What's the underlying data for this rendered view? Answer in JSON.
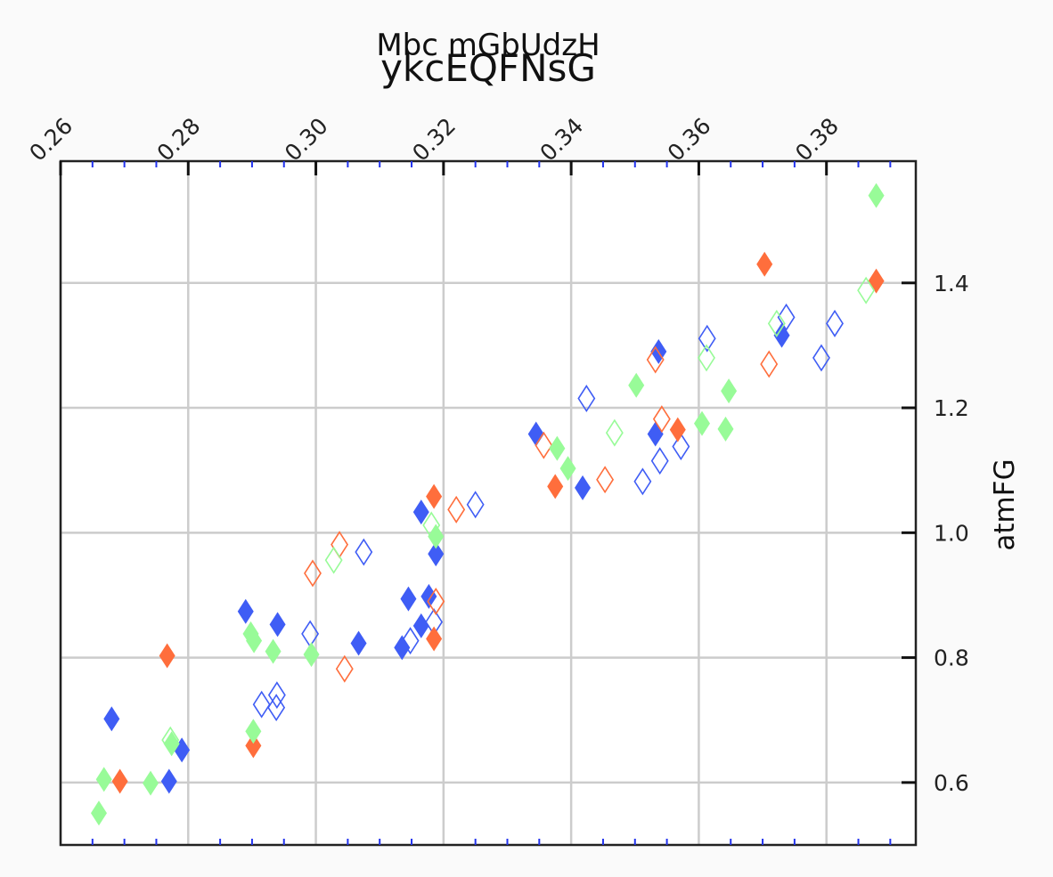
{
  "chart_data": {
    "type": "scatter",
    "title": "ykcEQFNsG",
    "subtitle": "Mbc mGbUdzH",
    "xlabel": "",
    "ylabel": "atmFG",
    "x_axis_position": "top",
    "y_axis_position": "right",
    "xlim": [
      0.26,
      0.394
    ],
    "ylim": [
      0.5,
      1.595
    ],
    "x_ticks": [
      0.26,
      0.28,
      0.3,
      0.32,
      0.34,
      0.36,
      0.38
    ],
    "x_tick_labels": [
      "0.26",
      "0.28",
      "0.30",
      "0.32",
      "0.34",
      "0.36",
      "0.38"
    ],
    "y_ticks": [
      0.6,
      0.8,
      1.0,
      1.2,
      1.4
    ],
    "y_tick_labels": [
      "0.6",
      "0.8",
      "1.0",
      "1.2",
      "1.4"
    ],
    "grid": true,
    "marker": "diamond",
    "colors": {
      "blue": "#3f5df5",
      "orange": "#ff6e3c",
      "green": "#98fb98",
      "background": "#fafafa",
      "grid": "#cccccc",
      "axis": "#222222"
    },
    "series": [
      {
        "color": "#3f5df5",
        "filled": [
          [
            0.268,
            0.702
          ],
          [
            0.277,
            0.602
          ],
          [
            0.279,
            0.652
          ],
          [
            0.289,
            0.874
          ],
          [
            0.294,
            0.853
          ],
          [
            0.3067,
            0.823
          ],
          [
            0.3135,
            0.816
          ],
          [
            0.3145,
            0.894
          ],
          [
            0.3165,
            0.851
          ],
          [
            0.3165,
            1.033
          ],
          [
            0.3177,
            0.898
          ],
          [
            0.3188,
            0.966
          ],
          [
            0.3345,
            1.158
          ],
          [
            0.3418,
            1.072
          ],
          [
            0.3532,
            1.158
          ],
          [
            0.3537,
            1.29
          ],
          [
            0.373,
            1.316
          ]
        ],
        "hollow": [
          [
            0.2915,
            0.725
          ],
          [
            0.2938,
            0.72
          ],
          [
            0.2939,
            0.74
          ],
          [
            0.2991,
            0.838
          ],
          [
            0.3075,
            0.969
          ],
          [
            0.3148,
            0.827
          ],
          [
            0.3185,
            0.857
          ],
          [
            0.325,
            1.045
          ],
          [
            0.3424,
            1.215
          ],
          [
            0.3512,
            1.082
          ],
          [
            0.3539,
            1.115
          ],
          [
            0.3572,
            1.138
          ],
          [
            0.3613,
            1.311
          ],
          [
            0.3737,
            1.345
          ],
          [
            0.3792,
            1.28
          ],
          [
            0.3813,
            1.335
          ]
        ]
      },
      {
        "color": "#ff6e3c",
        "filled": [
          [
            0.2693,
            0.602
          ],
          [
            0.2767,
            0.803
          ],
          [
            0.2902,
            0.659
          ],
          [
            0.3185,
            0.83
          ],
          [
            0.3185,
            1.058
          ],
          [
            0.3375,
            1.074
          ],
          [
            0.3567,
            1.165
          ],
          [
            0.3703,
            1.43
          ],
          [
            0.3878,
            1.403
          ]
        ],
        "hollow": [
          [
            0.2995,
            0.935
          ],
          [
            0.3037,
            0.981
          ],
          [
            0.3045,
            0.782
          ],
          [
            0.3188,
            0.89
          ],
          [
            0.322,
            1.037
          ],
          [
            0.3357,
            1.14
          ],
          [
            0.3453,
            1.085
          ],
          [
            0.3532,
            1.277
          ],
          [
            0.3542,
            1.182
          ],
          [
            0.371,
            1.27
          ]
        ]
      },
      {
        "color": "#98fb98",
        "filled": [
          [
            0.266,
            0.551
          ],
          [
            0.2668,
            0.605
          ],
          [
            0.2741,
            0.599
          ],
          [
            0.2774,
            0.662
          ],
          [
            0.2898,
            0.838
          ],
          [
            0.2903,
            0.827
          ],
          [
            0.2902,
            0.682
          ],
          [
            0.2933,
            0.81
          ],
          [
            0.2993,
            0.805
          ],
          [
            0.3188,
            0.994
          ],
          [
            0.3378,
            1.135
          ],
          [
            0.3395,
            1.103
          ],
          [
            0.3502,
            1.236
          ],
          [
            0.3605,
            1.175
          ],
          [
            0.3642,
            1.166
          ],
          [
            0.3647,
            1.227
          ],
          [
            0.3878,
            1.54
          ]
        ],
        "hollow": [
          [
            0.2772,
            0.668
          ],
          [
            0.3028,
            0.956
          ],
          [
            0.3181,
            1.012
          ],
          [
            0.3468,
            1.16
          ],
          [
            0.3612,
            1.28
          ],
          [
            0.3722,
            1.335
          ],
          [
            0.3862,
            1.388
          ]
        ]
      }
    ]
  }
}
